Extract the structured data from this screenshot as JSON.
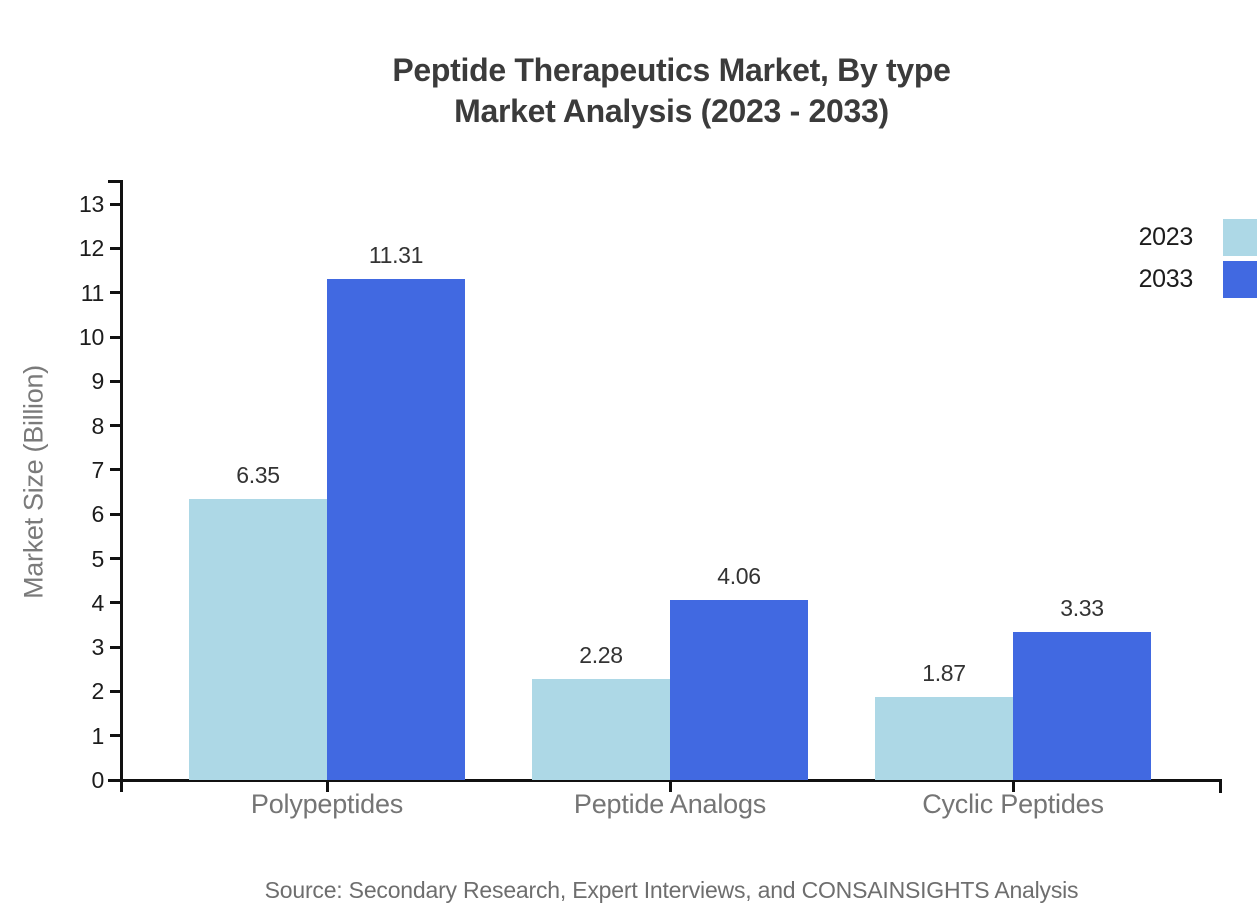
{
  "page": {
    "title_line1": "Peptide Therapeutics Market, By type",
    "title_line2": "Market Analysis (2023 - 2033)",
    "source": "Source: Secondary Research, Expert Interviews, and CONSAINSIGHTS Analysis"
  },
  "chart_data": {
    "type": "bar",
    "title": "Peptide Therapeutics Market, By type Market Analysis (2023 - 2033)",
    "categories": [
      "Polypeptides",
      "Peptide Analogs",
      "Cyclic Peptides"
    ],
    "series": [
      {
        "name": "2023",
        "color": "#ADD8E6",
        "values": [
          6.35,
          2.28,
          1.87
        ]
      },
      {
        "name": "2033",
        "color": "#4169E1",
        "values": [
          11.31,
          4.06,
          3.33
        ]
      }
    ],
    "value_labels": [
      "6.35",
      "11.31",
      "2.28",
      "4.06",
      "1.87",
      "3.33"
    ],
    "xlabel": "",
    "ylabel": "Market Size (Billion)",
    "ylim": [
      0,
      13
    ],
    "ytick_step": 1,
    "ytick_labels": [
      "0",
      "1",
      "2",
      "3",
      "4",
      "5",
      "6",
      "7",
      "8",
      "9",
      "10",
      "11",
      "12",
      "13"
    ],
    "grid": false,
    "legend_position": "top-right",
    "axis_color": "#111111",
    "source": "Source: Secondary Research, Expert Interviews, and CONSAINSIGHTS Analysis"
  }
}
